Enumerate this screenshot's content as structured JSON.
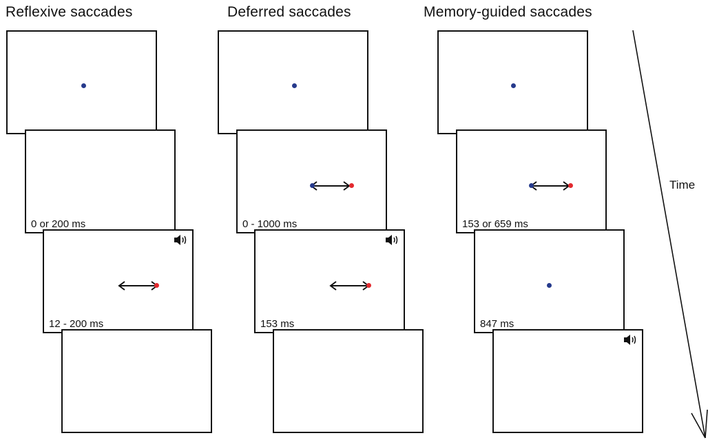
{
  "titles": {
    "reflexive": "Reflexive saccades",
    "deferred": "Deferred saccades",
    "memory": "Memory-guided saccades"
  },
  "reflexive": {
    "frame2_label": "0 or 200 ms",
    "frame3_label": "12 - 200 ms"
  },
  "deferred": {
    "frame2_label": "0 - 1000 ms",
    "frame3_label": "153 ms"
  },
  "memory": {
    "frame2_label": "153 or 659 ms",
    "frame3_label": "847 ms"
  },
  "time_label": "Time",
  "colors": {
    "fixation_dot": "#263a8c",
    "target_dot": "#e32a2f",
    "line": "#111111"
  },
  "icons": {
    "sound": "speaker-icon",
    "saccade": "double-arrow-icon"
  }
}
